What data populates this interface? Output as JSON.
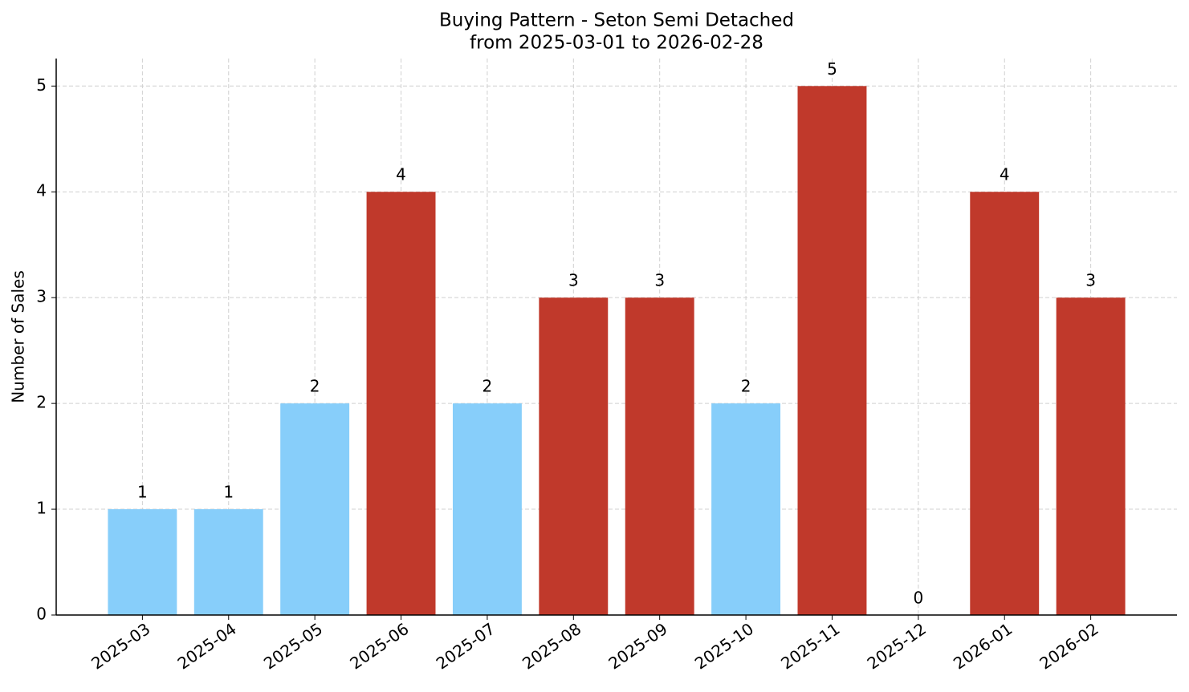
{
  "chart_data": {
    "type": "bar",
    "title": "Buying Pattern - Seton Semi Detached",
    "subtitle": "from 2025-03-01 to 2026-02-28",
    "y_label": "Number of Sales",
    "categories": [
      "2025-03",
      "2025-04",
      "2025-05",
      "2025-06",
      "2025-07",
      "2025-08",
      "2025-09",
      "2025-10",
      "2025-11",
      "2025-12",
      "2026-01",
      "2026-02"
    ],
    "values": [
      1,
      1,
      2,
      4,
      2,
      3,
      3,
      2,
      5,
      0,
      4,
      3
    ],
    "colors": [
      "#87cefa",
      "#87cefa",
      "#87cefa",
      "#c0392b",
      "#87cefa",
      "#c0392b",
      "#c0392b",
      "#87cefa",
      "#c0392b",
      "#87cefa",
      "#c0392b",
      "#c0392b"
    ],
    "ylim": [
      0,
      5.26
    ],
    "yticks": [
      0,
      1,
      2,
      3,
      4,
      5
    ],
    "grid": true
  }
}
